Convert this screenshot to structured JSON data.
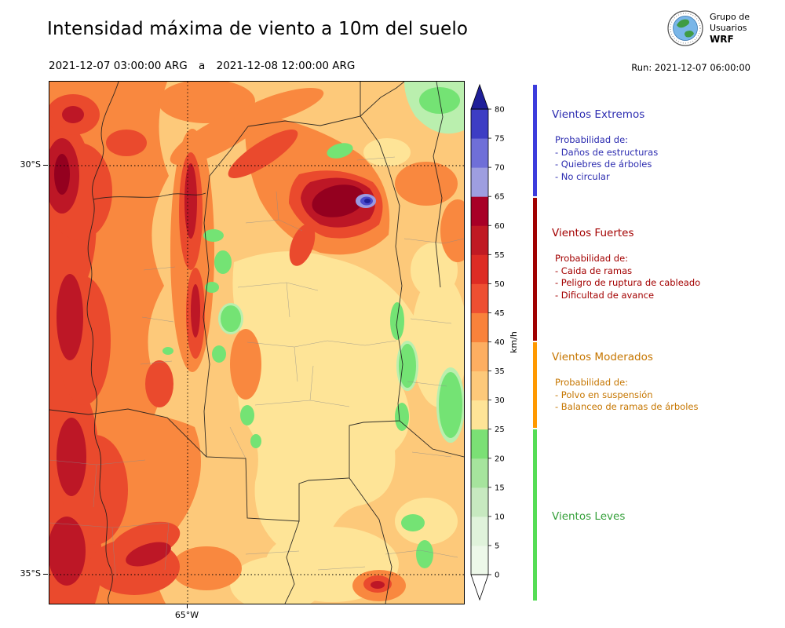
{
  "header": {
    "title": "Intensidad máxima de viento a 10m del suelo",
    "period_start": "2021-12-07 03:00:00 ARG",
    "period_conj": "a",
    "period_end": "2021-12-08 12:00:00 ARG",
    "run": "Run: 2021-12-07 06:00:00"
  },
  "logo": {
    "line1": "Grupo de",
    "line2": "Usuarios",
    "line3": "WRF"
  },
  "map": {
    "lat_top": "30°S",
    "lat_bottom": "35°S",
    "lon": "65°W"
  },
  "colorbar": {
    "unit": "km/h",
    "min": 0,
    "max": 80,
    "ticks": [
      0,
      5,
      10,
      15,
      20,
      25,
      30,
      35,
      40,
      45,
      50,
      55,
      60,
      65,
      70,
      75,
      80
    ],
    "colors": [
      "#edf8e9",
      "#e0f3db",
      "#c7e9c0",
      "#a6e49d",
      "#7be075",
      "#fee497",
      "#fdc97a",
      "#fdae61",
      "#f9823b",
      "#ee4f32",
      "#dd2c24",
      "#c01a23",
      "#a80026",
      "#9e9ee0",
      "#6f6fd8",
      "#3d3dc4"
    ],
    "over_color": "#1f1f99",
    "under_color": "#ffffff"
  },
  "legend": {
    "categories": [
      {
        "name": "Vientos Extremos",
        "color": "#2c2cb0",
        "bar_color": "#3c3cdc",
        "lines": [
          "Probabilidad de:",
          "- Daños de estructuras",
          "- Quiebres de árboles",
          "- No circular"
        ]
      },
      {
        "name": "Vientos Fuertes",
        "color": "#a30000",
        "bar_color": "#a00000",
        "lines": [
          "Probabilidad de:",
          "- Caida de ramas",
          "- Peligro de ruptura de cableado",
          "- Dificultad de avance"
        ]
      },
      {
        "name": "Vientos Moderados",
        "color": "#c67600",
        "bar_color": "#ff9900",
        "lines": [
          "Probabilidad de:",
          "- Polvo en suspensión",
          "- Balanceo de ramas de árboles"
        ]
      },
      {
        "name": "Vientos Leves",
        "color": "#35a03a",
        "bar_color": "#55dd55",
        "lines": []
      }
    ]
  }
}
